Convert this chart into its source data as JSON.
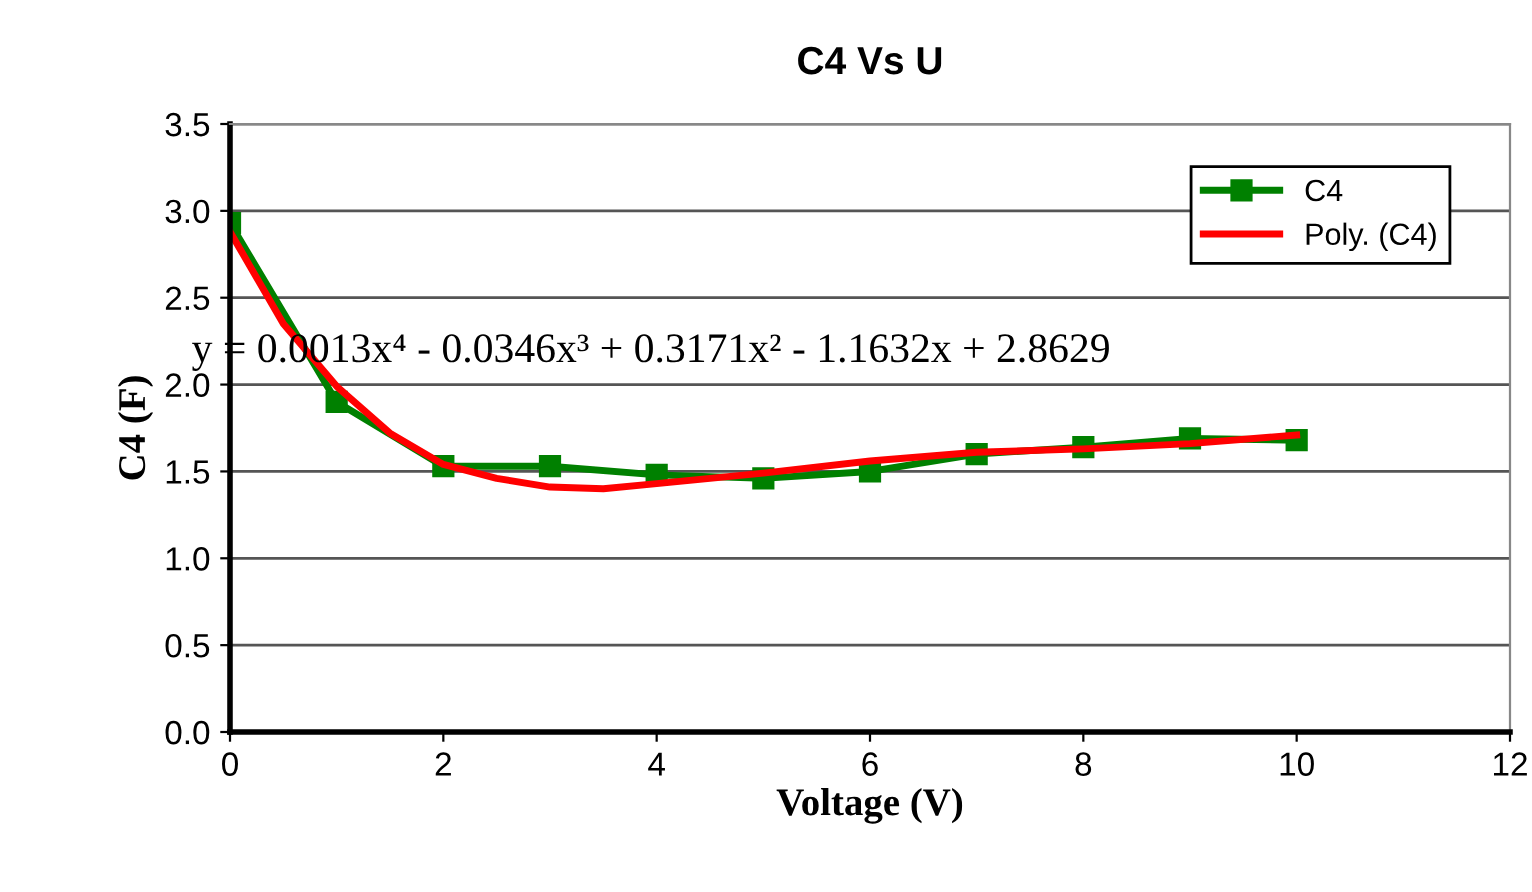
{
  "chart_data": {
    "type": "line",
    "title": "C4 Vs U",
    "xlabel": "Voltage (V)",
    "ylabel": "C4 (F)",
    "xlim": [
      0,
      12
    ],
    "xticks": [
      0,
      2,
      4,
      6,
      8,
      10,
      12
    ],
    "ylim": [
      0,
      3.5
    ],
    "yticks": [
      {
        "value": 0,
        "label": "0.0"
      },
      0.5,
      {
        "value": 1,
        "label": "1.0"
      },
      1.5,
      {
        "value": 2,
        "label": "2.0"
      },
      2.5,
      {
        "value": 3,
        "label": "3.0"
      },
      3.5
    ],
    "grid": "y",
    "legend": "top right",
    "series": [
      {
        "name": "C4",
        "color": "#008000",
        "marker": "square",
        "x": [
          0,
          1,
          2,
          3,
          4,
          5,
          6,
          7,
          8,
          9,
          10
        ],
        "values": [
          2.93,
          1.9,
          1.53,
          1.53,
          1.48,
          1.46,
          1.5,
          1.6,
          1.64,
          1.69,
          1.68
        ]
      },
      {
        "name": "Poly. (C4)",
        "color": "#ff0000",
        "marker": "none",
        "x": [
          0,
          0.5,
          1,
          1.5,
          2,
          2.5,
          3,
          3.5,
          4,
          5,
          6,
          7,
          8,
          9,
          10
        ],
        "values": [
          2.88,
          2.35,
          1.99,
          1.72,
          1.54,
          1.46,
          1.41,
          1.4,
          1.43,
          1.49,
          1.56,
          1.61,
          1.63,
          1.66,
          1.71
        ]
      }
    ],
    "annotations": [
      "y = 0.0013x⁴ - 0.0346x³ + 0.3171x² - 1.1632x + 2.8629"
    ]
  }
}
